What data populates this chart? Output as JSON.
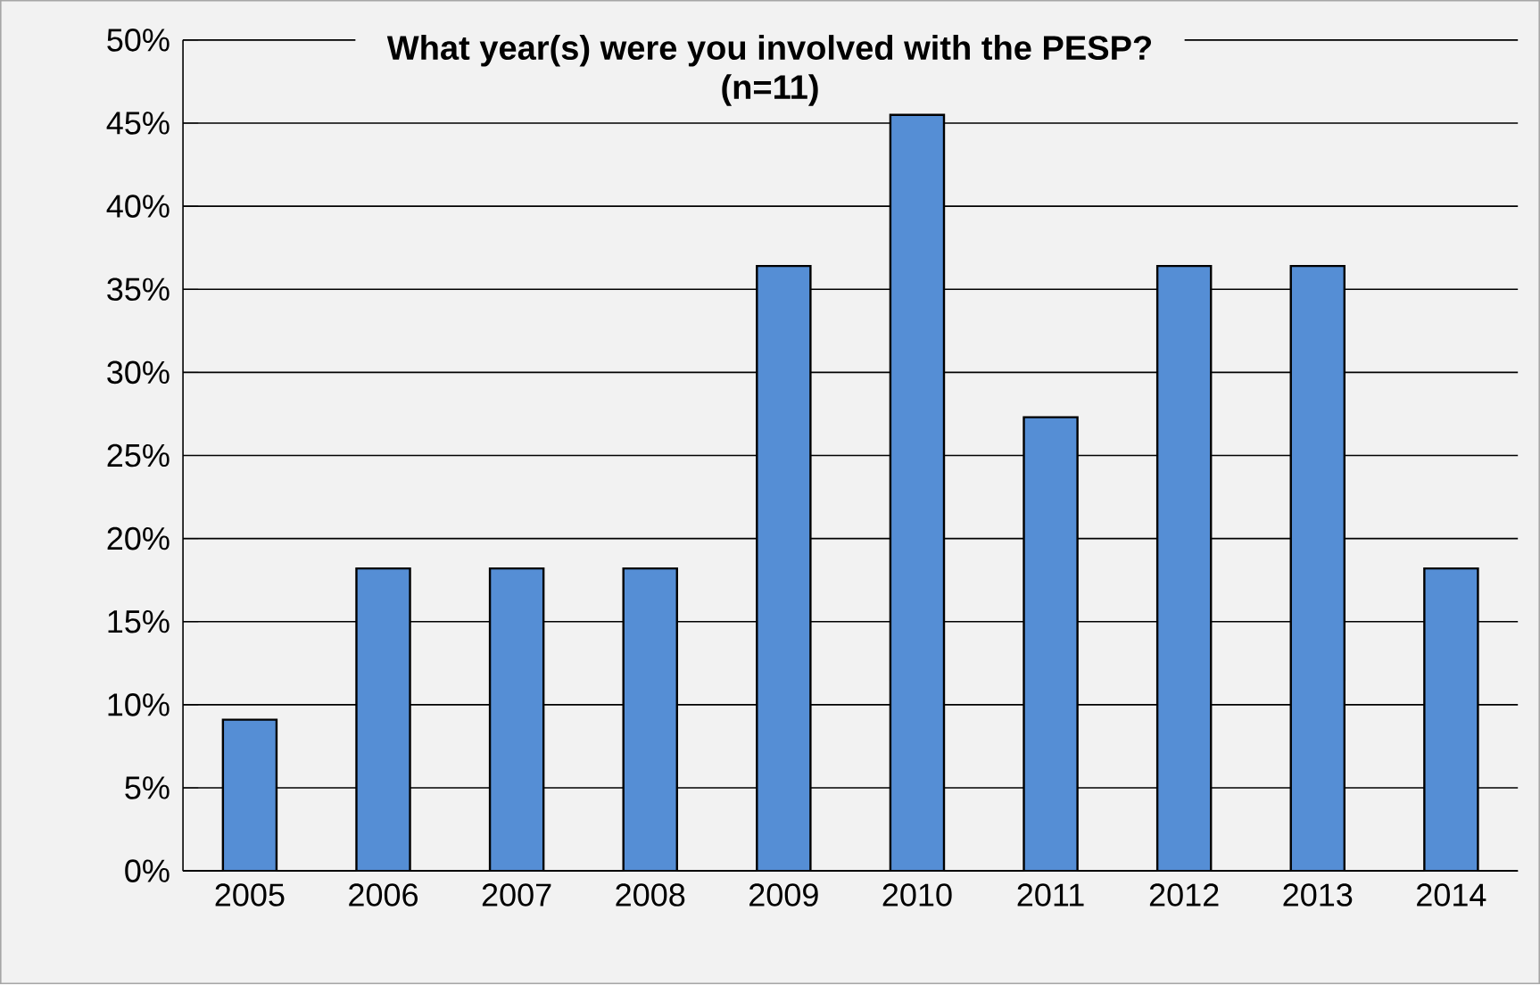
{
  "chart_data": {
    "type": "bar",
    "title": "What year(s) were you involved with the PESP?\n(n=11)",
    "categories": [
      "2005",
      "2006",
      "2007",
      "2008",
      "2009",
      "2010",
      "2011",
      "2012",
      "2013",
      "2014"
    ],
    "values": [
      9.1,
      18.2,
      18.2,
      18.2,
      36.4,
      45.5,
      27.3,
      36.4,
      36.4,
      18.2
    ],
    "color": "#558ed5",
    "ylim": [
      0,
      50
    ],
    "yticks": [
      {
        "value": 0,
        "label": "0%"
      },
      {
        "value": 5,
        "label": "5%"
      },
      {
        "value": 10,
        "label": "10%"
      },
      {
        "value": 15,
        "label": "15%"
      },
      {
        "value": 20,
        "label": "20%"
      },
      {
        "value": 25,
        "label": "25%"
      },
      {
        "value": 30,
        "label": "30%"
      },
      {
        "value": 35,
        "label": "35%"
      },
      {
        "value": 40,
        "label": "40%"
      },
      {
        "value": 45,
        "label": "45%"
      },
      {
        "value": 50,
        "label": "50%"
      }
    ],
    "grid": "y"
  }
}
